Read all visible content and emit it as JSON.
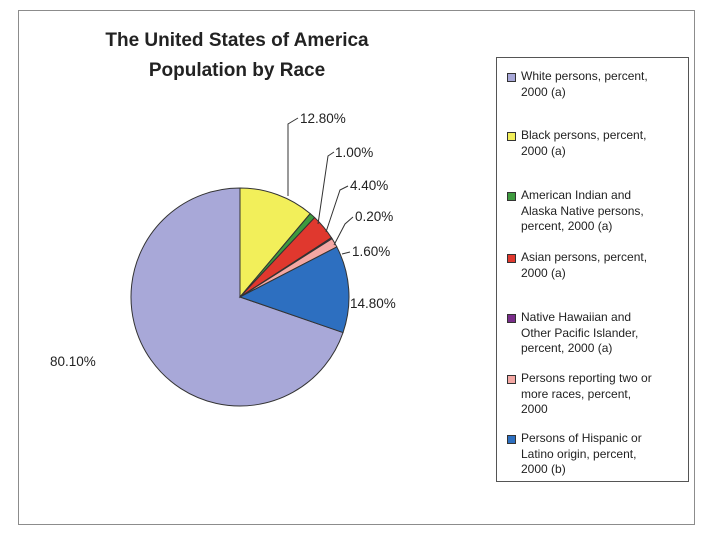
{
  "chart_data": {
    "type": "pie",
    "title": "The United States of America",
    "subtitle": "Population by Race",
    "legend_position": "right",
    "slices": [
      {
        "name": "White persons, percent, 2000 (a)",
        "value": 80.1,
        "label": "80.10%",
        "color": "#a8a8d8"
      },
      {
        "name": "Black persons, percent, 2000 (a)",
        "value": 12.8,
        "label": "12.80%",
        "color": "#f2ef5a"
      },
      {
        "name": "American Indian and Alaska Native persons, percent, 2000 (a)",
        "value": 1.0,
        "label": "1.00%",
        "color": "#3e9a3e"
      },
      {
        "name": "Asian persons, percent, 2000 (a)",
        "value": 4.4,
        "label": "4.40%",
        "color": "#e0382e"
      },
      {
        "name": "Native Hawaiian and Other Pacific Islander, percent, 2000 (a)",
        "value": 0.2,
        "label": "0.20%",
        "color": "#7a2d8a"
      },
      {
        "name": "Persons reporting two or more races, percent, 2000",
        "value": 1.6,
        "label": "1.60%",
        "color": "#f4a7a3"
      },
      {
        "name": "Persons of Hispanic or Latino origin, percent, 2000 (b)",
        "value": 14.8,
        "label": "14.80%",
        "color": "#2d6fc0"
      }
    ]
  },
  "legend_lines": [
    [
      "White persons, percent,",
      "2000 (a)"
    ],
    [
      "Black persons, percent,",
      "2000 (a)"
    ],
    [
      "American Indian and",
      "Alaska Native persons,",
      "percent, 2000 (a)"
    ],
    [
      "Asian persons, percent,",
      "2000 (a)"
    ],
    [
      "Native Hawaiian and",
      "Other Pacific Islander,",
      "percent, 2000 (a)"
    ],
    [
      "Persons reporting two or",
      "more races, percent,",
      "2000"
    ],
    [
      "Persons of Hispanic or",
      "Latino origin, percent,",
      "2000 (b)"
    ]
  ]
}
